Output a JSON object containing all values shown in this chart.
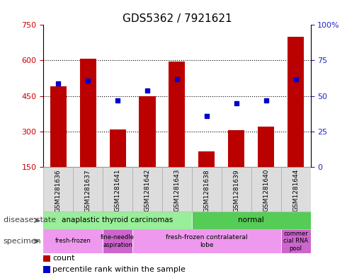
{
  "title": "GDS5362 / 7921621",
  "samples": [
    "GSM1281636",
    "GSM1281637",
    "GSM1281641",
    "GSM1281642",
    "GSM1281643",
    "GSM1281638",
    "GSM1281639",
    "GSM1281640",
    "GSM1281644"
  ],
  "counts": [
    490,
    607,
    307,
    450,
    595,
    215,
    305,
    320,
    700
  ],
  "percentile_ranks": [
    59,
    61,
    47,
    54,
    62,
    36,
    45,
    47,
    62
  ],
  "ylim_left": [
    150,
    750
  ],
  "ylim_right": [
    0,
    100
  ],
  "yticks_left": [
    150,
    300,
    450,
    600,
    750
  ],
  "yticks_right": [
    0,
    25,
    50,
    75,
    100
  ],
  "bar_color": "#bb0000",
  "dot_color": "#0000cc",
  "title_fontsize": 11,
  "tick_color_left": "#cc0000",
  "tick_color_right": "#2222cc",
  "disease_state_label": "disease state",
  "specimen_label": "specimen",
  "ds_groups": [
    {
      "label": "anaplastic thyroid carcinomas",
      "start": 0,
      "end": 5,
      "color": "#99ee99"
    },
    {
      "label": "normal",
      "start": 5,
      "end": 9,
      "color": "#55cc55"
    }
  ],
  "sp_groups": [
    {
      "label": "fresh-frozen",
      "start": 0,
      "end": 2,
      "color": "#ee99ee"
    },
    {
      "label": "fine-needle\naspiration",
      "start": 2,
      "end": 3,
      "color": "#cc66cc"
    },
    {
      "label": "fresh-frozen contralateral\nlobe",
      "start": 3,
      "end": 8,
      "color": "#ee99ee"
    },
    {
      "label": "commer\ncial RNA\npool",
      "start": 8,
      "end": 9,
      "color": "#cc66cc"
    }
  ],
  "legend_items": [
    {
      "label": "count",
      "color": "#bb0000"
    },
    {
      "label": "percentile rank within the sample",
      "color": "#0000cc"
    }
  ],
  "cell_bg": "#dddddd",
  "cell_edge": "#aaaaaa"
}
